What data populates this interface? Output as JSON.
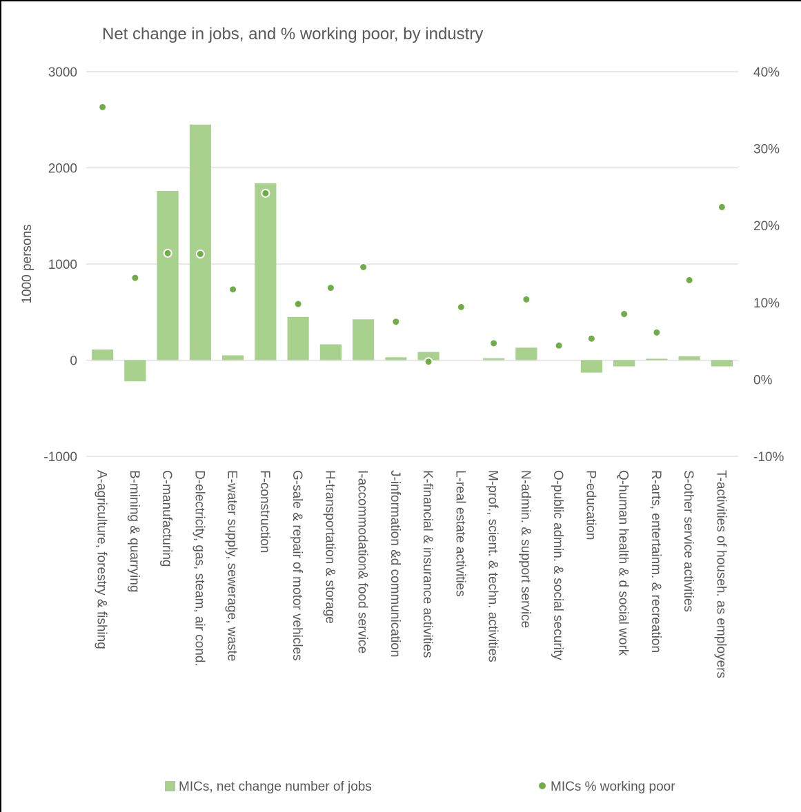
{
  "chart_data": {
    "type": "bar",
    "title": "Net change in jobs, and % working poor, by industry",
    "ylabel": "1000 persons",
    "ylim": [
      -1000,
      3000
    ],
    "y_ticks": [
      "3000",
      "2000",
      "1000",
      "0",
      "-1000"
    ],
    "y_tick_values": [
      3000,
      2000,
      1000,
      0,
      -1000
    ],
    "y2lim": [
      -0.1,
      0.4
    ],
    "y2_ticks": [
      "40%",
      "30%",
      "20%",
      "10%",
      "0%",
      "-10%"
    ],
    "y2_tick_values": [
      0.4,
      0.3,
      0.2,
      0.1,
      0.0,
      -0.1
    ],
    "grid": true,
    "legend_position": "bottom",
    "colors": {
      "bar": "#a9d18e",
      "dot": "#70ad47",
      "grid": "#d9d9d9",
      "text": "#595959"
    },
    "categories": [
      "A-agriculture, forestry & fishing",
      "B-mining & quarrying",
      "C-manufacturing",
      "D-electricity, gas, steam, air cond.",
      "E-water supply, sewerage, waste",
      "F-construction",
      "G-sale & repair of motor vehicles",
      "H-transportation & storage",
      "I-accommodation& food service",
      "J-information &d communication",
      "K-financial & insurance activities",
      "L-real estate activities",
      "M-prof., scient. & techn. activities",
      "N-admin. & support service",
      "O-public admin. & social security",
      "P-education",
      "Q-human health & d social work",
      "R-arts, entertainm. & recreation",
      "S-other service activities",
      "T-activities of househ. as employers"
    ],
    "series": [
      {
        "name": "MICs, net change number of jobs",
        "type": "bar",
        "axis": "left",
        "values": [
          110,
          -220,
          1760,
          2450,
          50,
          1840,
          450,
          165,
          425,
          30,
          85,
          0,
          20,
          130,
          0,
          -130,
          -65,
          15,
          40,
          -65
        ]
      },
      {
        "name": "MICs % working poor",
        "type": "scatter",
        "axis": "right",
        "values": [
          0.354,
          0.132,
          0.164,
          0.163,
          0.117,
          0.242,
          0.098,
          0.119,
          0.146,
          0.075,
          0.023,
          0.094,
          0.047,
          0.104,
          0.044,
          0.053,
          0.085,
          0.061,
          0.129,
          0.224
        ]
      }
    ]
  }
}
